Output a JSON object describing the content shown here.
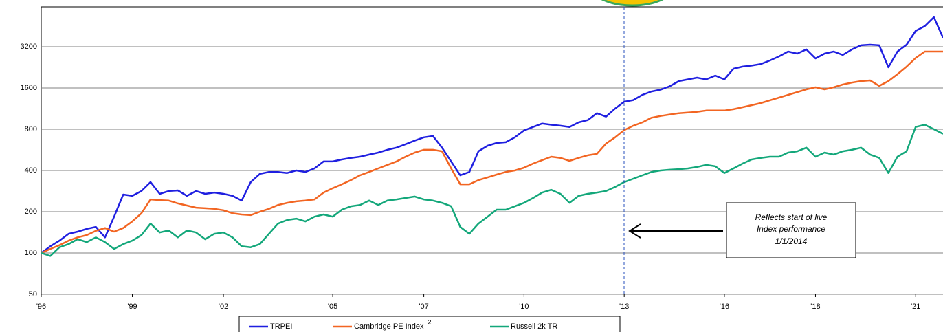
{
  "chart_data": {
    "type": "line",
    "log_scale": true,
    "grid": true,
    "categories": [
      "'96",
      null,
      null,
      null,
      null,
      null,
      null,
      null,
      null,
      null,
      "'99",
      null,
      null,
      null,
      null,
      null,
      null,
      null,
      null,
      null,
      "'02",
      null,
      null,
      null,
      null,
      null,
      null,
      null,
      null,
      null,
      null,
      null,
      "'05",
      null,
      null,
      null,
      null,
      null,
      null,
      null,
      null,
      null,
      "'07",
      null,
      null,
      null,
      null,
      null,
      null,
      null,
      null,
      null,
      null,
      "'10",
      null,
      null,
      null,
      null,
      null,
      null,
      null,
      null,
      null,
      null,
      "'13",
      null,
      null,
      null,
      null,
      null,
      null,
      null,
      null,
      null,
      null,
      "'16",
      null,
      null,
      null,
      null,
      null,
      null,
      null,
      null,
      null,
      "'18",
      null,
      null,
      null,
      null,
      null,
      null,
      null,
      null,
      null,
      null,
      "'21",
      null,
      null,
      null
    ],
    "ylim": [
      50,
      6250
    ],
    "yticks": [
      50,
      100,
      200,
      400,
      800,
      1600,
      3200
    ],
    "series": [
      {
        "name": "TRPEI",
        "color": "#1f1fe0",
        "values": [
          100,
          112,
          123,
          138,
          143,
          150,
          155,
          130,
          184,
          267,
          261,
          283,
          329,
          270,
          283,
          286,
          261,
          283,
          270,
          276,
          270,
          261,
          241,
          329,
          378,
          390,
          390,
          383,
          400,
          390,
          414,
          465,
          465,
          481,
          494,
          504,
          522,
          540,
          566,
          587,
          622,
          660,
          698,
          713,
          587,
          465,
          369,
          390,
          552,
          606,
          635,
          643,
          698,
          783,
          831,
          880,
          862,
          848,
          831,
          898,
          932,
          1047,
          988,
          1131,
          1270,
          1305,
          1425,
          1508,
          1556,
          1647,
          1796,
          1847,
          1902,
          1847,
          1970,
          1847,
          2211,
          2290,
          2330,
          2390,
          2540,
          2720,
          2950,
          2851,
          3056,
          2629,
          2851,
          2950,
          2786,
          3056,
          3275,
          3312,
          3275,
          2263,
          2950,
          3312,
          4172,
          4525,
          5258,
          3718
        ]
      },
      {
        "name": "Cambridge PE Index",
        "footnote": "2",
        "color": "#f26522",
        "values": [
          100,
          107,
          114,
          123,
          130,
          135,
          145,
          152,
          143,
          152,
          170,
          195,
          246,
          243,
          241,
          230,
          222,
          214,
          212,
          210,
          205,
          195,
          191,
          189,
          200,
          210,
          224,
          232,
          238,
          241,
          246,
          276,
          297,
          317,
          340,
          369,
          390,
          414,
          439,
          465,
          504,
          540,
          566,
          566,
          552,
          414,
          317,
          317,
          340,
          356,
          373,
          390,
          400,
          419,
          449,
          476,
          504,
          494,
          470,
          494,
          516,
          528,
          628,
          698,
          789,
          848,
          898,
          970,
          1000,
          1024,
          1047,
          1059,
          1071,
          1095,
          1095,
          1095,
          1119,
          1158,
          1198,
          1241,
          1300,
          1360,
          1425,
          1493,
          1563,
          1618,
          1563,
          1618,
          1694,
          1752,
          1796,
          1817,
          1656,
          1796,
          2016,
          2290,
          2645,
          2950,
          2950,
          2950
        ]
      },
      {
        "name": "Russell 2k TR",
        "color": "#13a77a",
        "values": [
          100,
          95,
          110,
          116,
          126,
          120,
          130,
          120,
          107,
          116,
          123,
          135,
          164,
          141,
          146,
          130,
          146,
          141,
          126,
          138,
          141,
          130,
          112,
          110,
          116,
          138,
          164,
          174,
          178,
          170,
          184,
          191,
          184,
          207,
          219,
          224,
          241,
          224,
          241,
          246,
          252,
          258,
          246,
          241,
          232,
          219,
          155,
          138,
          164,
          184,
          207,
          207,
          219,
          232,
          252,
          276,
          289,
          270,
          232,
          261,
          270,
          276,
          283,
          303,
          329,
          348,
          369,
          390,
          400,
          405,
          409,
          414,
          424,
          439,
          429,
          383,
          414,
          449,
          481,
          494,
          504,
          504,
          540,
          552,
          587,
          504,
          540,
          522,
          552,
          566,
          587,
          522,
          494,
          383,
          504,
          552,
          831,
          862,
          800,
          740
        ]
      }
    ],
    "annotation": [
      "Reflects start of live",
      "Index performance",
      "1/1/2014"
    ]
  }
}
